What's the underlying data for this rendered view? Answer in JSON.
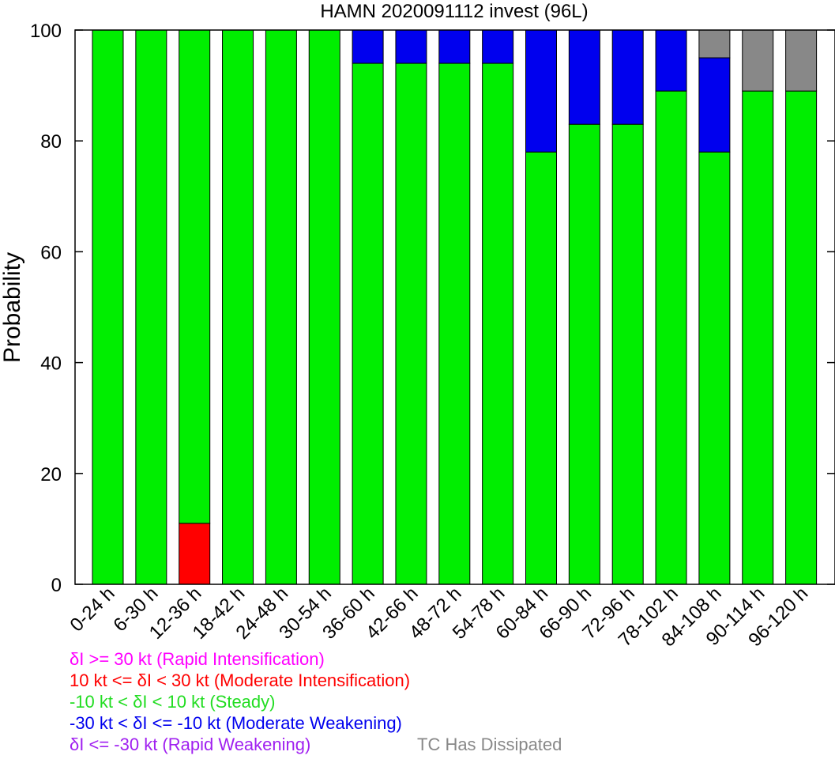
{
  "chart_data": {
    "type": "bar",
    "stacked": true,
    "title": "HAMN 2020091112 invest (96L)",
    "xlabel": "",
    "ylabel": "Probability",
    "ylim": [
      0,
      100
    ],
    "yticks": [
      0,
      20,
      40,
      60,
      80,
      100
    ],
    "grid": false,
    "categories": [
      "0-24 h",
      "6-30 h",
      "12-36 h",
      "18-42 h",
      "24-48 h",
      "30-54 h",
      "36-60 h",
      "42-66 h",
      "48-72 h",
      "54-78 h",
      "60-84 h",
      "66-90 h",
      "72-96 h",
      "78-102 h",
      "84-108 h",
      "90-114 h",
      "96-120 h"
    ],
    "series": [
      {
        "key": "ri",
        "color": "#ff00ff",
        "values": [
          0,
          0,
          0,
          0,
          0,
          0,
          0,
          0,
          0,
          0,
          0,
          0,
          0,
          0,
          0,
          0,
          0
        ]
      },
      {
        "key": "mi",
        "color": "#ff0000",
        "values": [
          0,
          0,
          11,
          0,
          0,
          0,
          0,
          0,
          0,
          0,
          0,
          0,
          0,
          0,
          0,
          0,
          0
        ]
      },
      {
        "key": "steady",
        "color": "#00ee00",
        "values": [
          100,
          100,
          89,
          100,
          100,
          100,
          94,
          94,
          94,
          94,
          78,
          83,
          83,
          89,
          78,
          89,
          89
        ]
      },
      {
        "key": "mw",
        "color": "#0000ee",
        "values": [
          0,
          0,
          0,
          0,
          0,
          0,
          6,
          6,
          6,
          6,
          22,
          17,
          17,
          11,
          17,
          0,
          0
        ]
      },
      {
        "key": "rw",
        "color": "#a020f0",
        "values": [
          0,
          0,
          0,
          0,
          0,
          0,
          0,
          0,
          0,
          0,
          0,
          0,
          0,
          0,
          0,
          0,
          0
        ]
      },
      {
        "key": "dissipated",
        "color": "#888888",
        "values": [
          0,
          0,
          0,
          0,
          0,
          0,
          0,
          0,
          0,
          0,
          0,
          0,
          0,
          0,
          5,
          11,
          11
        ]
      }
    ],
    "legend": {
      "placement": "bottom-left",
      "entries": [
        {
          "key": "ri",
          "text": "δI >= 30 kt (Rapid Intensification)",
          "color": "#ff00ff"
        },
        {
          "key": "mi",
          "text": "10 kt <= δI < 30 kt (Moderate Intensification)",
          "color": "#ff0000"
        },
        {
          "key": "steady",
          "text": "-10 kt < δI < 10 kt (Steady)",
          "color": "#22dd22"
        },
        {
          "key": "mw",
          "text": "-30 kt < δI <= -10 kt (Moderate Weakening)",
          "color": "#0000ee"
        },
        {
          "key": "rw",
          "text": "δI <= -30 kt (Rapid Weakening)",
          "color": "#a020f0"
        },
        {
          "key": "dissipated",
          "text": "TC Has Dissipated",
          "color": "#888888"
        }
      ]
    }
  }
}
